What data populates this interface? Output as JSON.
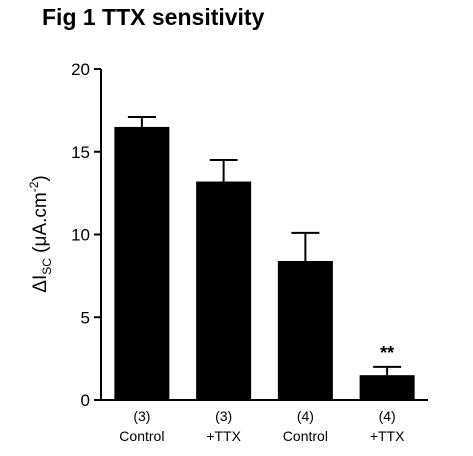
{
  "title": "Fig 1 TTX sensitivity",
  "chart_data": {
    "type": "bar",
    "categories": [
      {
        "n": "(3)",
        "label": "Control"
      },
      {
        "n": "(3)",
        "label": "+TTX"
      },
      {
        "n": "(4)",
        "label": "Control"
      },
      {
        "n": "(4)",
        "label": "+TTX"
      }
    ],
    "values": [
      16.5,
      13.2,
      8.4,
      1.5
    ],
    "errors": [
      0.6,
      1.3,
      1.7,
      0.5
    ],
    "annotations": [
      "",
      "",
      "",
      "**"
    ],
    "ylabel": {
      "prefix": "ΔI",
      "subscript": "SC",
      "units_open": " (μA.cm",
      "superscript": "-2",
      "units_close": ")"
    },
    "ylim": [
      0,
      20
    ],
    "yticks": [
      0,
      5,
      10,
      15,
      20
    ],
    "grid": false,
    "bar_color": "#000000"
  }
}
